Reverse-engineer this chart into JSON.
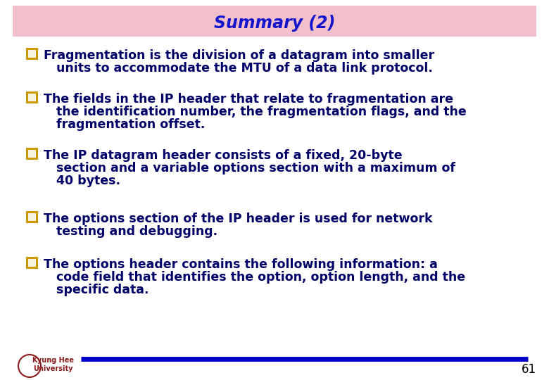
{
  "title": "Summary (2)",
  "title_color": "#1414cc",
  "title_bg_color": "#f2c0cc",
  "title_fontsize": 17,
  "bg_color": "#ffffff",
  "text_color": "#000066",
  "bullet_box_color": "#cc9900",
  "font_size": 12.5,
  "bullet_lines": [
    [
      "Fragmentation is the division of a datagram into smaller",
      "   units to accommodate the MTU of a data link protocol."
    ],
    [
      "The fields in the IP header that relate to fragmentation are",
      "   the identification number, the fragmentation flags, and the",
      "   fragmentation offset."
    ],
    [
      "The IP datagram header consists of a fixed, 20-byte",
      "   section and a variable options section with a maximum of",
      "   40 bytes."
    ],
    [
      "The options section of the IP header is used for network",
      "   testing and debugging."
    ],
    [
      "The options header contains the following information: a",
      "   code field that identifies the option, option length, and the",
      "   specific data."
    ]
  ],
  "footer_line_color": "#0000cc",
  "footer_text": "61",
  "footer_logo_text": "Kyung Hee\nUniversity",
  "footer_logo_color": "#8b1a1a"
}
